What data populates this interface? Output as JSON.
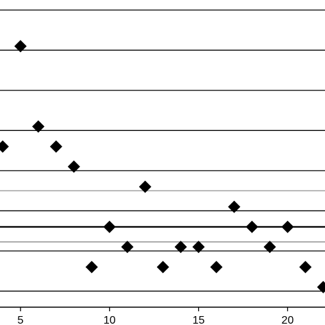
{
  "chart_data": {
    "type": "scatter",
    "xlim": [
      3.85,
      22.1
    ],
    "x_ticks": [
      5,
      10,
      15,
      20
    ],
    "x_tick_labels": [
      "5",
      "10",
      "15",
      "20"
    ],
    "ylim": [
      0,
      15.3
    ],
    "grid": "horizontal",
    "h_lines": [
      {
        "y": 14.8,
        "color": "#000000",
        "style": "thin"
      },
      {
        "y": 12.8,
        "color": "#000000",
        "style": "thin"
      },
      {
        "y": 10.8,
        "color": "#000000",
        "style": "thin"
      },
      {
        "y": 8.8,
        "color": "#000000",
        "style": "thin"
      },
      {
        "y": 6.8,
        "color": "#000000",
        "style": "thin"
      },
      {
        "y": 5.8,
        "color": "#999999",
        "style": "thin"
      },
      {
        "y": 4.8,
        "color": "#000000",
        "style": "thin"
      },
      {
        "y": 4.0,
        "color": "#000000",
        "style": "thick"
      },
      {
        "y": 3.25,
        "color": "#888888",
        "style": "thin"
      },
      {
        "y": 2.8,
        "color": "#000000",
        "style": "thin"
      },
      {
        "y": 0.8,
        "color": "#000000",
        "style": "thin"
      }
    ],
    "series": [
      {
        "marker": "diamond",
        "color": "#000000",
        "points": [
          {
            "x": 4,
            "y": 8.0
          },
          {
            "x": 5,
            "y": 13.0
          },
          {
            "x": 6,
            "y": 9.0
          },
          {
            "x": 7,
            "y": 8.0
          },
          {
            "x": 8,
            "y": 7.0
          },
          {
            "x": 9,
            "y": 2.0
          },
          {
            "x": 10,
            "y": 4.0
          },
          {
            "x": 11,
            "y": 3.0
          },
          {
            "x": 12,
            "y": 6.0
          },
          {
            "x": 13,
            "y": 2.0
          },
          {
            "x": 14,
            "y": 3.0
          },
          {
            "x": 15,
            "y": 3.0
          },
          {
            "x": 16,
            "y": 2.0
          },
          {
            "x": 17,
            "y": 5.0
          },
          {
            "x": 18,
            "y": 4.0
          },
          {
            "x": 19,
            "y": 3.0
          },
          {
            "x": 20,
            "y": 4.0
          },
          {
            "x": 21,
            "y": 2.0
          },
          {
            "x": 22,
            "y": 1.0
          }
        ]
      }
    ]
  }
}
